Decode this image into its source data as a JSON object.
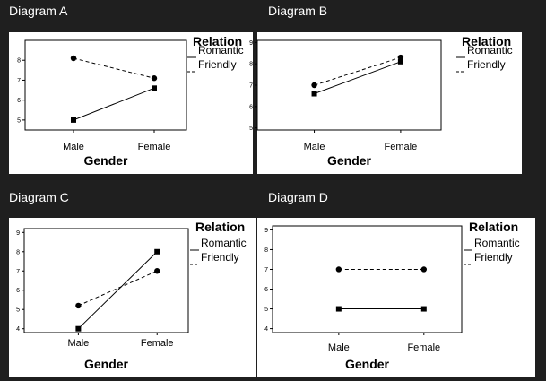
{
  "chart_data": [
    {
      "type": "line",
      "panel_label": "Diagram A",
      "title": "",
      "xlabel": "Gender",
      "ylabel": "",
      "categories": [
        "Male",
        "Female"
      ],
      "ylim": [
        4.5,
        9
      ],
      "yticks": [
        5,
        6,
        7,
        8
      ],
      "legend_title": "Relation",
      "legend_position": "right",
      "series": [
        {
          "name": "Romantic",
          "values": [
            5.0,
            6.6
          ],
          "style": "solid",
          "marker": "square"
        },
        {
          "name": "Friendly",
          "values": [
            8.1,
            7.1
          ],
          "style": "dashed",
          "marker": "circle"
        }
      ]
    },
    {
      "type": "line",
      "panel_label": "Diagram B",
      "title": "",
      "xlabel": "Gender",
      "ylabel": "",
      "categories": [
        "Male",
        "Female"
      ],
      "ylim": [
        4.9,
        9.1
      ],
      "yticks": [
        5,
        6,
        7,
        8,
        9
      ],
      "legend_title": "Relation",
      "legend_position": "right",
      "series": [
        {
          "name": "Romantic",
          "values": [
            6.6,
            8.1
          ],
          "style": "solid",
          "marker": "square"
        },
        {
          "name": "Friendly",
          "values": [
            7.0,
            8.3
          ],
          "style": "dashed",
          "marker": "circle"
        }
      ]
    },
    {
      "type": "line",
      "panel_label": "Diagram C",
      "title": "",
      "xlabel": "Gender",
      "ylabel": "",
      "categories": [
        "Male",
        "Female"
      ],
      "ylim": [
        3.8,
        9.2
      ],
      "yticks": [
        4,
        5,
        6,
        7,
        8,
        9
      ],
      "legend_title": "Relation",
      "legend_position": "right",
      "series": [
        {
          "name": "Romantic",
          "values": [
            4.0,
            8.0
          ],
          "style": "solid",
          "marker": "square"
        },
        {
          "name": "Friendly",
          "values": [
            5.2,
            7.0
          ],
          "style": "dashed",
          "marker": "circle"
        }
      ]
    },
    {
      "type": "line",
      "panel_label": "Diagram D",
      "title": "",
      "xlabel": "Gender",
      "ylabel": "",
      "categories": [
        "Male",
        "Female"
      ],
      "ylim": [
        3.8,
        9.2
      ],
      "yticks": [
        4,
        5,
        6,
        7,
        8,
        9
      ],
      "legend_title": "Relation",
      "legend_position": "right",
      "series": [
        {
          "name": "Romantic",
          "values": [
            5.0,
            5.0
          ],
          "style": "solid",
          "marker": "square"
        },
        {
          "name": "Friendly",
          "values": [
            7.0,
            7.0
          ],
          "style": "dashed",
          "marker": "circle"
        }
      ]
    }
  ]
}
